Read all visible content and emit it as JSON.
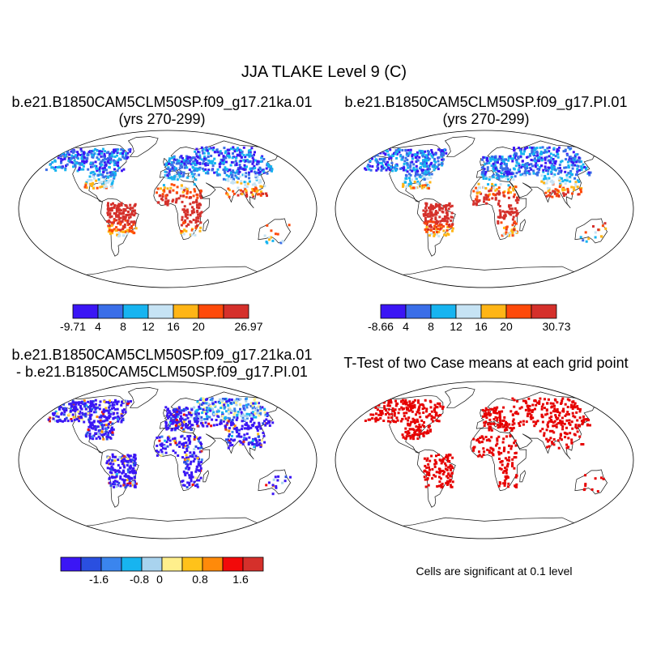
{
  "figure": {
    "title": "JJA TLAKE Level 9 (C)"
  },
  "panels": [
    {
      "id": "p1",
      "title_line1": "b.e21.B1850CAM5CLM50SP.f09_g17.21ka.01",
      "title_line2": "(yrs 270-299)",
      "colorbar": {
        "colors": [
          "#3b16f5",
          "#3a6ee8",
          "#17b4f0",
          "#c6e3f4",
          "#ffb516",
          "#fe4a0a",
          "#d5302b"
        ],
        "labels": [
          "-9.71",
          "4",
          "8",
          "12",
          "16",
          "20",
          "26.97"
        ]
      }
    },
    {
      "id": "p2",
      "title_line1": "b.e21.B1850CAM5CLM50SP.f09_g17.PI.01",
      "title_line2": "(yrs 270-299)",
      "colorbar": {
        "colors": [
          "#3b16f5",
          "#3a6ee8",
          "#17b4f0",
          "#c6e3f4",
          "#ffb516",
          "#fe4a0a",
          "#d5302b"
        ],
        "labels": [
          "-8.66",
          "4",
          "8",
          "12",
          "16",
          "20",
          "30.73"
        ]
      }
    },
    {
      "id": "p3",
      "title_line1": "b.e21.B1850CAM5CLM50SP.f09_g17.21ka.01",
      "title_line2": "- b.e21.B1850CAM5CLM50SP.f09_g17.PI.01",
      "colorbar": {
        "colors": [
          "#3b16f5",
          "#2a4fe0",
          "#3a85ee",
          "#17b4f0",
          "#a9d3ee",
          "#ffef8c",
          "#ffc21a",
          "#ff8a0a",
          "#f20a0a",
          "#d5302b"
        ],
        "labels": [
          "-1.6",
          "-0.8",
          "0",
          "0.8",
          "1.6"
        ]
      }
    },
    {
      "id": "p4",
      "title_line1": "T-Test of two Case means at each grid point",
      "note": "Cells are significant at 0.1 level",
      "color": "#e60000"
    }
  ]
}
